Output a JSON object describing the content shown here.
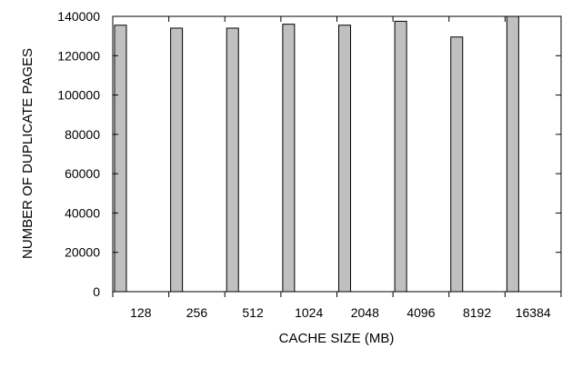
{
  "chart_data": {
    "type": "bar",
    "categories": [
      "128",
      "256",
      "512",
      "1024",
      "2048",
      "4096",
      "8192",
      "16384"
    ],
    "series": [
      {
        "values": [
          135500,
          134000,
          134000,
          136000,
          135500,
          137500,
          129500,
          140000
        ]
      }
    ],
    "title": "",
    "xlabel": "CACHE SIZE (MB)",
    "ylabel": "NUMBER OF DUPLICATE PAGES",
    "ylim": [
      0,
      140000
    ],
    "yticks": [
      0,
      20000,
      40000,
      60000,
      80000,
      100000,
      120000,
      140000
    ],
    "grid": false,
    "legend": "none",
    "bar_color": "#c0c0c0",
    "edge_color": "#000000"
  }
}
